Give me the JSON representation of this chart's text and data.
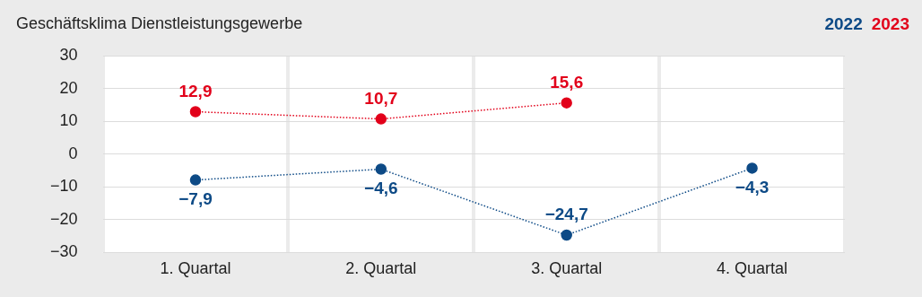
{
  "chart_data": {
    "type": "line",
    "title": "Geschäftsklima Dienstleistungsgewerbe",
    "categories": [
      "1. Quartal",
      "2. Quartal",
      "3. Quartal",
      "4. Quartal"
    ],
    "series": [
      {
        "name": "2022",
        "color": "#0d4a86",
        "values": [
          -7.9,
          -4.6,
          -24.7,
          -4.3
        ],
        "value_labels": [
          "−7,9",
          "−4,6",
          "−24,7",
          "−4,3"
        ]
      },
      {
        "name": "2023",
        "color": "#e2001a",
        "values": [
          12.9,
          10.7,
          15.6,
          null
        ],
        "value_labels": [
          "12,9",
          "10,7",
          "15,6",
          null
        ]
      }
    ],
    "ylim": [
      -30,
      30
    ],
    "yticks": [
      {
        "value": -30,
        "label": "−30"
      },
      {
        "value": -20,
        "label": "−20"
      },
      {
        "value": -10,
        "label": "−10"
      },
      0,
      10,
      20,
      30
    ],
    "grid": true,
    "legend": "top right",
    "marker": "circle",
    "line_style": "dotted"
  }
}
